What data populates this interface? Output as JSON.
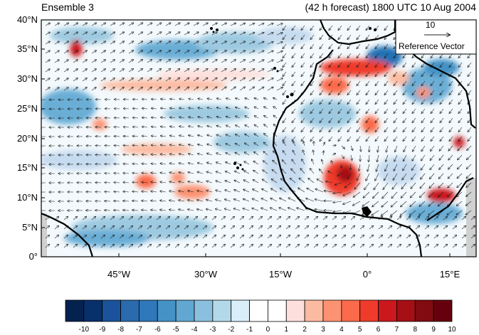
{
  "header": {
    "left_title": "Ensemble 3",
    "right_title": "(42 h forecast) 1800 UTC 10 Aug 2004"
  },
  "axes": {
    "lat_labels": [
      "40°N",
      "35°N",
      "30°N",
      "25°N",
      "20°N",
      "15°N",
      "10°N",
      "5°N",
      "0°"
    ],
    "lon_labels": [
      "45°W",
      "30°W",
      "15°W",
      "0°",
      "15°E"
    ],
    "lon_range": [
      -57,
      19
    ],
    "lat_range": [
      0,
      40
    ]
  },
  "reference_vector": {
    "magnitude": "10",
    "label": "Reference Vector"
  },
  "colorbar": {
    "colors": [
      "#05224f",
      "#08306b",
      "#1a539b",
      "#2a6aad",
      "#2f78b9",
      "#4592c6",
      "#61a7d2",
      "#8ac0dd",
      "#b3d9e9",
      "#d9eef8",
      "#ffffff",
      "#ffffff",
      "#fde0dd",
      "#fcbba1",
      "#fc9272",
      "#fb6a4a",
      "#ef3b2c",
      "#cb181d",
      "#a50f15",
      "#800b10",
      "#67000d"
    ],
    "tick_labels": [
      "-10",
      "-9",
      "-8",
      "-7",
      "-6",
      "-5",
      "-4",
      "-3",
      "-2",
      "-1",
      "0",
      "1",
      "2",
      "3",
      "4",
      "5",
      "6",
      "7",
      "8",
      "9",
      "10"
    ]
  },
  "map_field": {
    "colors": {
      "ocean_bg": "#eef7fb",
      "land_bg": "#f7fafc",
      "missing": "#d9d9d9"
    }
  }
}
